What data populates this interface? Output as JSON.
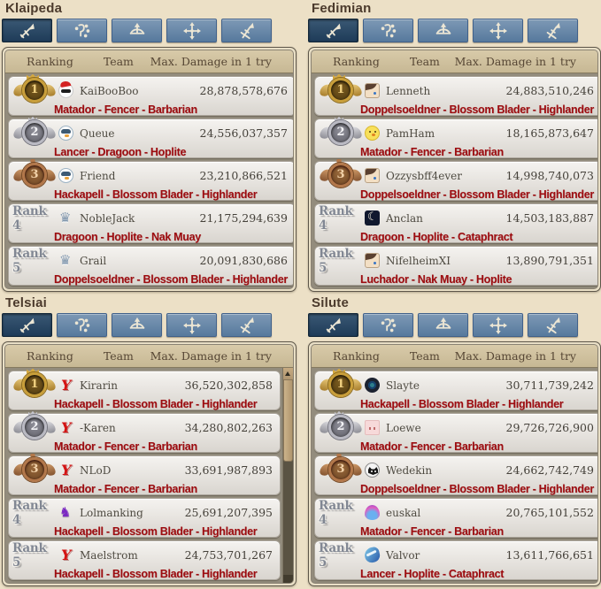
{
  "colors": {
    "page_bg": "#ece0c6",
    "build_text": "#9d0c10",
    "active_tab": "#1e3b58",
    "inactive_tab": "#56799d",
    "gold_medal": "#c89e3a",
    "silver_medal": "#b9b9c2",
    "bronze_medal": "#b2774a"
  },
  "board": {
    "columns": {
      "ranking": "Ranking",
      "team": "Team",
      "damage": "Max. Damage in 1 try"
    }
  },
  "tabs": [
    {
      "key": "sword",
      "icon": "sword-icon",
      "active": true
    },
    {
      "key": "magic",
      "icon": "magic-staff-icon",
      "active": false
    },
    {
      "key": "bow",
      "icon": "bow-icon",
      "active": false
    },
    {
      "key": "cross",
      "icon": "cross-icon",
      "active": false
    },
    {
      "key": "dagger",
      "icon": "crossed-daggers-icon",
      "active": false
    }
  ],
  "panels": [
    {
      "server": "Klaipeda",
      "rows": [
        {
          "rank": 1,
          "rank_label": "1",
          "avatar": "penguin-santa",
          "team": "KaiBooBoo",
          "damage": "28,878,578,676",
          "build": "Matador - Fencer - Barbarian"
        },
        {
          "rank": 2,
          "rank_label": "2",
          "avatar": "penguin",
          "team": "Queue",
          "damage": "24,556,037,357",
          "build": "Lancer - Dragoon - Hoplite"
        },
        {
          "rank": 3,
          "rank_label": "3",
          "avatar": "penguin",
          "team": "Friend",
          "damage": "23,210,866,521",
          "build": "Hackapell - Blossom Blader - Highlander"
        },
        {
          "rank": 4,
          "rank_label": "Rank 4",
          "avatar": "trophy",
          "team": "NobleJack",
          "damage": "21,175,294,639",
          "build": "Dragoon - Hoplite - Nak Muay"
        },
        {
          "rank": 5,
          "rank_label": "Rank 5",
          "avatar": "trophy",
          "team": "Grail",
          "damage": "20,091,830,686",
          "build": "Doppelsoeldner - Blossom Blader - Highlander"
        }
      ]
    },
    {
      "server": "Fedimian",
      "rows": [
        {
          "rank": 1,
          "rank_label": "1",
          "avatar": "anime",
          "team": "Lenneth",
          "damage": "24,883,510,246",
          "build": "Doppelsoeldner - Blossom Blader - Highlander"
        },
        {
          "rank": 2,
          "rank_label": "2",
          "avatar": "chick",
          "team": "PamHam",
          "damage": "18,165,873,647",
          "build": "Matador - Fencer - Barbarian"
        },
        {
          "rank": 3,
          "rank_label": "3",
          "avatar": "anime",
          "team": "Ozzysbff4ever",
          "damage": "14,998,740,073",
          "build": "Doppelsoeldner - Blossom Blader - Highlander"
        },
        {
          "rank": 4,
          "rank_label": "Rank 4",
          "avatar": "moon",
          "team": "Anclan",
          "damage": "14,503,183,887",
          "build": "Dragoon - Hoplite - Cataphract"
        },
        {
          "rank": 5,
          "rank_label": "Rank 5",
          "avatar": "anime",
          "team": "NifelheimXI",
          "damage": "13,890,791,351",
          "build": "Luchador - Nak Muay - Hoplite"
        }
      ]
    },
    {
      "server": "Telsiai",
      "rows": [
        {
          "rank": 1,
          "rank_label": "1",
          "avatar": "red-emblem",
          "team": "Kirarin",
          "damage": "36,520,302,858",
          "build": "Hackapell - Blossom Blader - Highlander"
        },
        {
          "rank": 2,
          "rank_label": "2",
          "avatar": "red-emblem",
          "team": "-Karen",
          "damage": "34,280,802,263",
          "build": "Matador - Fencer - Barbarian"
        },
        {
          "rank": 3,
          "rank_label": "3",
          "avatar": "red-emblem",
          "team": "NLoD",
          "damage": "33,691,987,893",
          "build": "Matador - Fencer - Barbarian"
        },
        {
          "rank": 4,
          "rank_label": "Rank 4",
          "avatar": "purple-sprite",
          "team": "Lolmanking",
          "damage": "25,691,207,395",
          "build": "Hackapell - Blossom Blader - Highlander"
        },
        {
          "rank": 5,
          "rank_label": "Rank 5",
          "avatar": "red-emblem",
          "team": "Maelstrom",
          "damage": "24,753,701,267",
          "build": "Hackapell - Blossom Blader - Highlander"
        }
      ]
    },
    {
      "server": "Silute",
      "rows": [
        {
          "rank": 1,
          "rank_label": "1",
          "avatar": "dark-shield",
          "team": "Slayte",
          "damage": "30,711,739,242",
          "build": "Hackapell - Blossom Blader - Highlander"
        },
        {
          "rank": 2,
          "rank_label": "2",
          "avatar": "pink-portrait",
          "team": "Loewe",
          "damage": "29,726,726,900",
          "build": "Matador - Fencer - Barbarian"
        },
        {
          "rank": 3,
          "rank_label": "3",
          "avatar": "cat",
          "team": "Wedekin",
          "damage": "24,662,742,749",
          "build": "Doppelsoeldner - Blossom Blader - Highlander"
        },
        {
          "rank": 4,
          "rank_label": "Rank 4",
          "avatar": "flame",
          "team": "euskal",
          "damage": "20,765,101,552",
          "build": "Matador - Fencer - Barbarian"
        },
        {
          "rank": 5,
          "rank_label": "Rank 5",
          "avatar": "wave-bird",
          "team": "Valvor",
          "damage": "13,611,766,651",
          "build": "Lancer - Hoplite - Cataphract"
        }
      ]
    }
  ]
}
